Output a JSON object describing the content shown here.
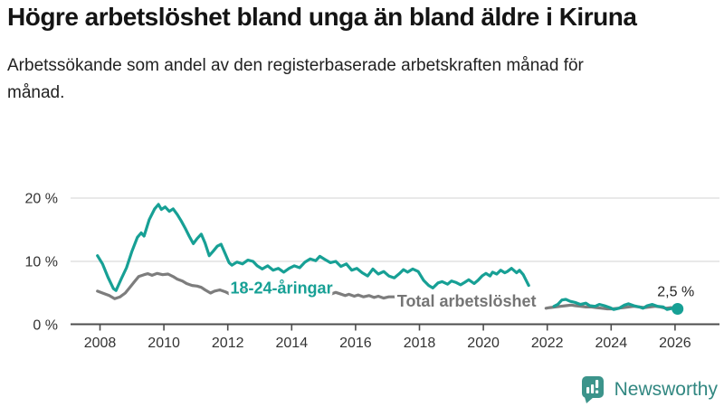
{
  "header": {
    "title": "Högre arbetslöshet bland unga än bland äldre i Kiruna",
    "subtitle": "Arbetssökande som andel av den registerbaserade arbetskraften månad för månad."
  },
  "footer": {
    "brand": "Newsworthy",
    "logo_icon": "bar-chart-speech-bubble-icon"
  },
  "colors": {
    "youth_line": "#17A095",
    "total_line": "#7D7D7D",
    "total_label": "#757575",
    "axis": "#4D4D4D",
    "grid": "#DCDCDC",
    "tick_text": "#333333",
    "endpoint_text": "#222222",
    "brand_teal": "#3C948B",
    "brand_text_teal": "#318781"
  },
  "chart_data": {
    "type": "line",
    "x_axis": {
      "unit": "year",
      "ticks": [
        2008,
        2010,
        2012,
        2014,
        2016,
        2018,
        2020,
        2022,
        2024,
        2026
      ],
      "range": [
        2007.75,
        2026.4
      ],
      "grid": false
    },
    "y_axis": {
      "unit": "%",
      "ticks": [
        0,
        10,
        20
      ],
      "tick_labels": [
        "0 %",
        "10 %",
        "20 %"
      ],
      "range": [
        0,
        21.5
      ],
      "grid": true
    },
    "series": [
      {
        "name": "Total arbetslöshet",
        "color": "#7D7D7D",
        "label_color": "#757575",
        "label_pos": {
          "year": 2017.3,
          "value": 3.72
        },
        "segments": [
          [
            [
              2007.92,
              5.3
            ],
            [
              2008.08,
              5.0
            ],
            [
              2008.29,
              4.6
            ],
            [
              2008.46,
              4.1
            ],
            [
              2008.63,
              4.4
            ],
            [
              2008.79,
              5.0
            ],
            [
              2008.92,
              5.8
            ],
            [
              2009.08,
              6.8
            ],
            [
              2009.21,
              7.6
            ],
            [
              2009.38,
              7.9
            ],
            [
              2009.5,
              8.05
            ],
            [
              2009.63,
              7.8
            ],
            [
              2009.79,
              8.1
            ],
            [
              2009.96,
              7.9
            ],
            [
              2010.13,
              8.0
            ],
            [
              2010.29,
              7.6
            ],
            [
              2010.42,
              7.2
            ],
            [
              2010.58,
              6.9
            ],
            [
              2010.71,
              6.5
            ],
            [
              2010.88,
              6.2
            ],
            [
              2011.04,
              6.1
            ],
            [
              2011.17,
              5.9
            ],
            [
              2011.29,
              5.5
            ],
            [
              2011.46,
              5.0
            ],
            [
              2011.58,
              5.3
            ],
            [
              2011.75,
              5.5
            ],
            [
              2011.92,
              5.2
            ],
            [
              2012.04,
              4.9
            ],
            [
              2012.21,
              5.2
            ],
            [
              2012.38,
              5.5
            ],
            [
              2012.5,
              5.3
            ],
            [
              2012.63,
              5.5
            ],
            [
              2012.79,
              5.2
            ],
            [
              2012.96,
              4.9
            ],
            [
              2013.08,
              5.2
            ],
            [
              2013.25,
              5.4
            ],
            [
              2013.42,
              5.2
            ],
            [
              2013.54,
              5.4
            ],
            [
              2013.71,
              5.1
            ],
            [
              2013.88,
              4.8
            ],
            [
              2014.04,
              5.0
            ],
            [
              2014.21,
              5.2
            ],
            [
              2014.29,
              4.9
            ],
            [
              2014.46,
              5.2
            ],
            [
              2014.63,
              5.0
            ],
            [
              2014.75,
              4.7
            ],
            [
              2014.92,
              4.9
            ],
            [
              2015.04,
              5.1
            ],
            [
              2015.21,
              4.8
            ],
            [
              2015.38,
              5.1
            ],
            [
              2015.5,
              4.9
            ],
            [
              2015.67,
              4.6
            ],
            [
              2015.79,
              4.8
            ],
            [
              2015.96,
              4.5
            ],
            [
              2016.08,
              4.7
            ],
            [
              2016.25,
              4.4
            ],
            [
              2016.42,
              4.6
            ],
            [
              2016.58,
              4.3
            ],
            [
              2016.71,
              4.5
            ],
            [
              2016.88,
              4.2
            ],
            [
              2017.04,
              4.4
            ],
            [
              2017.21,
              4.4
            ]
          ],
          [
            [
              2021.96,
              2.6
            ],
            [
              2022.08,
              2.7
            ],
            [
              2022.25,
              2.8
            ],
            [
              2022.42,
              2.9
            ],
            [
              2022.58,
              3.0
            ],
            [
              2022.75,
              3.1
            ],
            [
              2022.88,
              3.0
            ],
            [
              2023.04,
              2.9
            ],
            [
              2023.21,
              2.8
            ],
            [
              2023.38,
              2.8
            ],
            [
              2023.54,
              2.7
            ],
            [
              2023.71,
              2.6
            ],
            [
              2023.88,
              2.5
            ],
            [
              2024.04,
              2.5
            ],
            [
              2024.21,
              2.6
            ],
            [
              2024.38,
              2.7
            ],
            [
              2024.54,
              2.8
            ],
            [
              2024.71,
              2.9
            ],
            [
              2024.88,
              2.8
            ],
            [
              2025.04,
              2.7
            ],
            [
              2025.21,
              2.8
            ],
            [
              2025.38,
              2.9
            ],
            [
              2025.54,
              2.8
            ],
            [
              2025.71,
              2.6
            ],
            [
              2025.88,
              2.7
            ]
          ]
        ]
      },
      {
        "name": "18-24-åringar",
        "color": "#17A095",
        "label_color": "#17A095",
        "label_pos": {
          "year": 2012.08,
          "value": 5.8
        },
        "segments": [
          [
            [
              2007.92,
              10.9
            ],
            [
              2008.08,
              9.6
            ],
            [
              2008.25,
              7.5
            ],
            [
              2008.42,
              5.7
            ],
            [
              2008.5,
              5.4
            ],
            [
              2008.67,
              7.3
            ],
            [
              2008.83,
              9.0
            ],
            [
              2009.0,
              11.6
            ],
            [
              2009.17,
              13.8
            ],
            [
              2009.29,
              14.5
            ],
            [
              2009.38,
              14.0
            ],
            [
              2009.54,
              16.6
            ],
            [
              2009.71,
              18.3
            ],
            [
              2009.83,
              19.0
            ],
            [
              2009.92,
              18.2
            ],
            [
              2010.04,
              18.6
            ],
            [
              2010.17,
              17.9
            ],
            [
              2010.29,
              18.3
            ],
            [
              2010.42,
              17.4
            ],
            [
              2010.54,
              16.4
            ],
            [
              2010.67,
              15.2
            ],
            [
              2010.79,
              14.0
            ],
            [
              2010.92,
              12.8
            ],
            [
              2011.04,
              13.6
            ],
            [
              2011.17,
              14.3
            ],
            [
              2011.29,
              12.9
            ],
            [
              2011.42,
              10.9
            ],
            [
              2011.54,
              11.6
            ],
            [
              2011.67,
              12.4
            ],
            [
              2011.79,
              12.7
            ],
            [
              2011.92,
              11.2
            ],
            [
              2012.04,
              9.8
            ],
            [
              2012.13,
              9.4
            ],
            [
              2012.29,
              9.9
            ],
            [
              2012.46,
              9.6
            ],
            [
              2012.63,
              10.2
            ],
            [
              2012.79,
              10.0
            ],
            [
              2012.92,
              9.3
            ],
            [
              2013.08,
              8.8
            ],
            [
              2013.25,
              9.3
            ],
            [
              2013.42,
              8.6
            ],
            [
              2013.58,
              8.9
            ],
            [
              2013.75,
              8.3
            ],
            [
              2013.92,
              8.9
            ],
            [
              2014.08,
              9.3
            ],
            [
              2014.25,
              9.0
            ],
            [
              2014.42,
              9.9
            ],
            [
              2014.58,
              10.4
            ],
            [
              2014.75,
              10.1
            ],
            [
              2014.88,
              10.8
            ],
            [
              2015.04,
              10.3
            ],
            [
              2015.21,
              9.8
            ],
            [
              2015.38,
              10.0
            ],
            [
              2015.54,
              9.2
            ],
            [
              2015.71,
              9.6
            ],
            [
              2015.88,
              8.6
            ],
            [
              2016.04,
              8.9
            ],
            [
              2016.21,
              8.2
            ],
            [
              2016.38,
              7.7
            ],
            [
              2016.54,
              8.8
            ],
            [
              2016.71,
              8.0
            ],
            [
              2016.88,
              8.4
            ],
            [
              2017.04,
              7.7
            ],
            [
              2017.21,
              7.4
            ],
            [
              2017.38,
              8.1
            ],
            [
              2017.5,
              8.7
            ],
            [
              2017.63,
              8.3
            ],
            [
              2017.79,
              8.8
            ],
            [
              2017.96,
              8.4
            ],
            [
              2018.13,
              7.0
            ],
            [
              2018.29,
              6.2
            ],
            [
              2018.42,
              5.8
            ],
            [
              2018.58,
              6.6
            ],
            [
              2018.71,
              6.8
            ],
            [
              2018.88,
              6.4
            ],
            [
              2019.0,
              6.9
            ],
            [
              2019.13,
              6.7
            ],
            [
              2019.29,
              6.3
            ],
            [
              2019.42,
              6.7
            ],
            [
              2019.54,
              7.1
            ],
            [
              2019.71,
              6.5
            ],
            [
              2019.83,
              7.0
            ],
            [
              2019.96,
              7.7
            ],
            [
              2020.08,
              8.1
            ],
            [
              2020.21,
              7.7
            ],
            [
              2020.29,
              8.3
            ],
            [
              2020.42,
              8.0
            ],
            [
              2020.54,
              8.6
            ],
            [
              2020.67,
              8.2
            ],
            [
              2020.75,
              8.4
            ],
            [
              2020.88,
              8.9
            ],
            [
              2021.04,
              8.2
            ],
            [
              2021.13,
              8.6
            ],
            [
              2021.25,
              7.9
            ],
            [
              2021.33,
              7.1
            ],
            [
              2021.42,
              6.2
            ]
          ],
          [
            [
              2022.21,
              2.9
            ],
            [
              2022.33,
              3.2
            ],
            [
              2022.46,
              3.9
            ],
            [
              2022.58,
              4.0
            ],
            [
              2022.71,
              3.7
            ],
            [
              2022.88,
              3.5
            ],
            [
              2023.04,
              3.2
            ],
            [
              2023.21,
              3.4
            ],
            [
              2023.33,
              3.0
            ],
            [
              2023.5,
              2.9
            ],
            [
              2023.63,
              3.2
            ],
            [
              2023.79,
              3.0
            ],
            [
              2023.96,
              2.7
            ],
            [
              2024.08,
              2.4
            ],
            [
              2024.25,
              2.6
            ],
            [
              2024.42,
              3.1
            ],
            [
              2024.54,
              3.3
            ],
            [
              2024.71,
              3.0
            ],
            [
              2024.88,
              2.8
            ],
            [
              2025.0,
              2.6
            ],
            [
              2025.13,
              3.0
            ],
            [
              2025.29,
              3.2
            ],
            [
              2025.46,
              2.9
            ],
            [
              2025.63,
              2.8
            ],
            [
              2025.75,
              2.4
            ],
            [
              2025.92,
              2.6
            ],
            [
              2026.08,
              2.5
            ]
          ]
        ]
      }
    ],
    "endpoint": {
      "series": "18-24-åringar",
      "year": 2026.08,
      "value": 2.5,
      "label": "2,5 %"
    },
    "legend_position": "inline-labels"
  }
}
